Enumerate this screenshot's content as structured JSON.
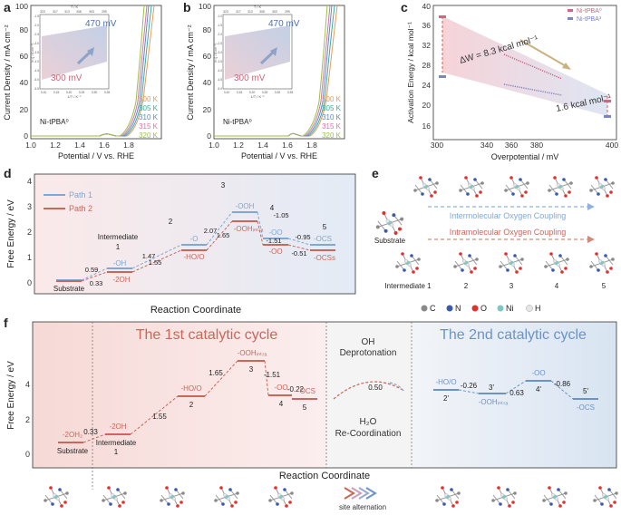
{
  "panel_labels": {
    "a": "a",
    "b": "b",
    "c": "c",
    "d": "d",
    "e": "e",
    "f": "f"
  },
  "panel_a": {
    "ylabel": "Current Density / mA cm⁻²",
    "xlabel": "Potential / V vs. RHE",
    "sample": "Ni-tPBA⁰",
    "inset_top_ticks": [
      "323",
      "317",
      "313",
      "308",
      "303",
      "299"
    ],
    "inset_top_label": "T / K",
    "inset_x_ticks": [
      "3.10",
      "3.15",
      "3.20",
      "3.25",
      "3.30",
      "3.35"
    ],
    "inset_x_label": "1/T / K⁻¹",
    "inset_y_ticks": [
      "-1.5",
      "-2.0",
      "-2.5",
      "-3.0",
      "-3.5",
      "-4.0",
      "-4.5",
      "-5.0",
      "-5.5"
    ],
    "inset_y_label": "ln (j / A cm⁻²)",
    "inset_high": "470 mV",
    "inset_low": "300 mV",
    "legend": [
      "300 K",
      "305 K",
      "310 K",
      "315 K",
      "320 K"
    ]
  },
  "panel_b": {
    "ylabel": "Current Density / mA cm⁻²",
    "xlabel": "Potential / V vs. RHE",
    "sample": "Ni-tPBA⁰",
    "inset_top_ticks": [
      "323",
      "317",
      "313",
      "308",
      "303",
      "299"
    ],
    "inset_top_label": "T / K",
    "inset_x_ticks": [
      "3.10",
      "3.15",
      "3.20",
      "3.25",
      "3.30",
      "3.35"
    ],
    "inset_x_label": "1/T / K⁻¹",
    "inset_y_ticks": [
      "-1.0",
      "-1.5",
      "-2.0",
      "-2.5",
      "-3.0",
      "-3.5",
      "-4.0",
      "-4.5",
      "-5.0"
    ],
    "inset_y_label": "ln (j / A cm⁻²)",
    "inset_high": "470 mV",
    "inset_low": "300 mV",
    "legend": [
      "300 K",
      "305 K",
      "310 K",
      "315 K",
      "320 K"
    ]
  },
  "panel_c": {
    "ylabel": "Activation Energy / kcal mol⁻¹",
    "xlabel": "Overpotential / mV",
    "legend": [
      "Ni-tPBA⁰",
      "Ni-tPBA³"
    ],
    "annot1": "ΔW = 8.3 kcal mol⁻¹",
    "annot2": "1.6 kcal mol⁻¹"
  },
  "panel_d": {
    "ylabel": "Free Energy / eV",
    "xlabel": "Reaction Coordinate",
    "legend": [
      "Path 1",
      "Path 2"
    ],
    "labels": {
      "substrate": "Substrate",
      "int": "Intermediate",
      "n1": "1",
      "n2": "2",
      "n3": "3",
      "n4": "4",
      "n5": "5",
      "oh": "-OH",
      "o": "-O",
      "ooh": "-OOH",
      "oo": "-OO",
      "ocs": "-OCS",
      "twooh": "-2OH",
      "hoo": "-HO/O",
      "oohintra": "-OOHᵢₙₜᵣₐ",
      "oo2": "-OO",
      "ocss": "-OCSs"
    },
    "values": {
      "v059": "0.59",
      "v033": "0.33",
      "v147": "1.47",
      "v155": "1.55",
      "v207": "2.07",
      "v165": "1.65",
      "v105": "-1.05",
      "v151": "-1.51",
      "v095": "-0.95",
      "v051": "-0.51"
    }
  },
  "panel_e": {
    "top_label": "Intermolecular Oxygen Coupling",
    "bottom_label": "Intramolecular Oxygen Coupling",
    "substrate": "Substrate",
    "steps": [
      "Intermediate 1",
      "2",
      "3",
      "4",
      "5"
    ],
    "atoms": [
      "C",
      "N",
      "O",
      "Ni",
      "H"
    ],
    "atom_colors": [
      "#8a8a8a",
      "#3b5aa8",
      "#e0322d",
      "#7cc7c3",
      "#e6e6e6"
    ]
  },
  "panel_f": {
    "ylabel": "Free Energy / eV",
    "xlabel": "Reaction Coordinate",
    "cycle1": "The 1st catalytic cycle",
    "cycle2": "The 2nd catalytic cycle",
    "mid_top1": "OH",
    "mid_top2": "Deprotonation",
    "mid_value": "0.50",
    "mid_bot1": "H₂O",
    "mid_bot2": "Re-Coordination",
    "site_alt": "site alternation",
    "c1": {
      "twooh2": "-2OH₂",
      "substrate": "Substrate",
      "v033": "0.33",
      "twooh": "-2OH",
      "intermediate": "Intermediate",
      "n1": "1",
      "v155": "1.55",
      "hoo": "-HO/O",
      "n2": "2",
      "v165": "1.65",
      "oohintra": "-OOHᵢₙₜᵣₐ",
      "n3": "3",
      "v151": "-1.51",
      "oo": "-OO",
      "n4": "4",
      "v022": "-0.22",
      "ocs": "-OCS",
      "n5": "5"
    },
    "c2": {
      "hoo": "-HO/O",
      "n2p": "2'",
      "v026": "-0.26",
      "n3p": "3'",
      "oohintra": "-OOHᵢₙₜᵣₐ",
      "v063": "0.63",
      "oo": "-OO",
      "n4p": "4'",
      "v086": "-0.86",
      "n5p": "5'",
      "ocs": "-OCS"
    }
  },
  "colors": {
    "path1": "#7fa8d6",
    "path2": "#c8675a",
    "cycle1": "#c8675a",
    "cycle2": "#6b93c8"
  }
}
